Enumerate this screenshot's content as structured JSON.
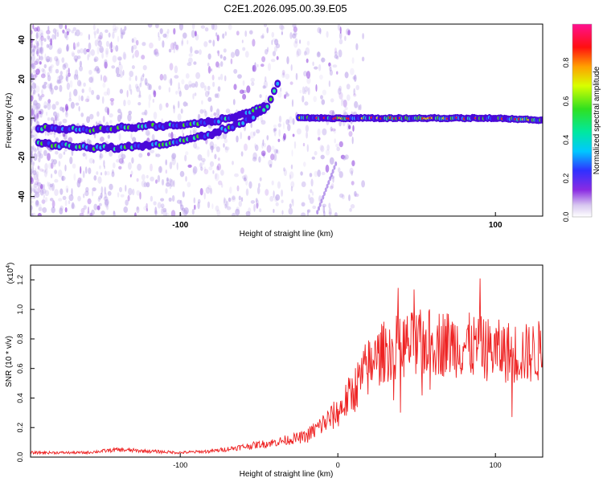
{
  "title": "C2E1.2026.095.00.39.E05",
  "chart_data": [
    {
      "type": "heatmap",
      "xlabel": "Height of straight line (km)",
      "ylabel": "Frequency (Hz)",
      "xlim": [
        -195,
        130
      ],
      "ylim": [
        -50,
        48
      ],
      "xticks": [
        -100,
        100
      ],
      "yticks": [
        -40,
        -20,
        0,
        20,
        40
      ],
      "colorbar": {
        "label": "Normalized spectral amplitude",
        "range": [
          0,
          1
        ],
        "ticks": [
          "0.0",
          "0.2",
          "0.4",
          "0.6",
          "0.8"
        ]
      },
      "tracks": [
        {
          "name": "upper-branch",
          "x": [
            -190,
            -160,
            -140,
            -120,
            -100,
            -80,
            -60,
            -45,
            -38
          ],
          "y": [
            -5,
            -6,
            -5,
            -4,
            -4,
            -2,
            2,
            6,
            18
          ]
        },
        {
          "name": "lower-branch",
          "x": [
            -190,
            -160,
            -140,
            -120,
            -100,
            -80,
            -60,
            -45
          ],
          "y": [
            -13,
            -15,
            -15,
            -14,
            -12,
            -8,
            -2,
            5
          ]
        },
        {
          "name": "flat-line",
          "x": [
            -25,
            0,
            50,
            100,
            130
          ],
          "y": [
            0,
            0,
            0,
            0,
            -1
          ]
        }
      ]
    },
    {
      "type": "line",
      "xlabel": "Height of straight line (km)",
      "ylabel": "SNR (10 * v/v)",
      "scale_label": "(x10^4)",
      "scale_base": "(x10",
      "scale_exp": "4",
      "scale_close": ")",
      "xlim": [
        -195,
        130
      ],
      "ylim": [
        0,
        1.3
      ],
      "xticks": [
        -100,
        0,
        100
      ],
      "yticks": [
        "0.0",
        "0.2",
        "0.4",
        "0.6",
        "0.8",
        "1.0",
        "1.2"
      ],
      "series": [
        {
          "name": "SNR",
          "x": [
            -195,
            -160,
            -140,
            -100,
            -80,
            -60,
            -40,
            -20,
            -10,
            0,
            10,
            20,
            30,
            40,
            60,
            80,
            100,
            120,
            130
          ],
          "y": [
            0.03,
            0.03,
            0.05,
            0.03,
            0.04,
            0.07,
            0.1,
            0.14,
            0.22,
            0.3,
            0.45,
            0.62,
            0.72,
            0.75,
            0.78,
            0.76,
            0.72,
            0.7,
            0.72
          ],
          "color": "#ee2222"
        }
      ]
    }
  ]
}
